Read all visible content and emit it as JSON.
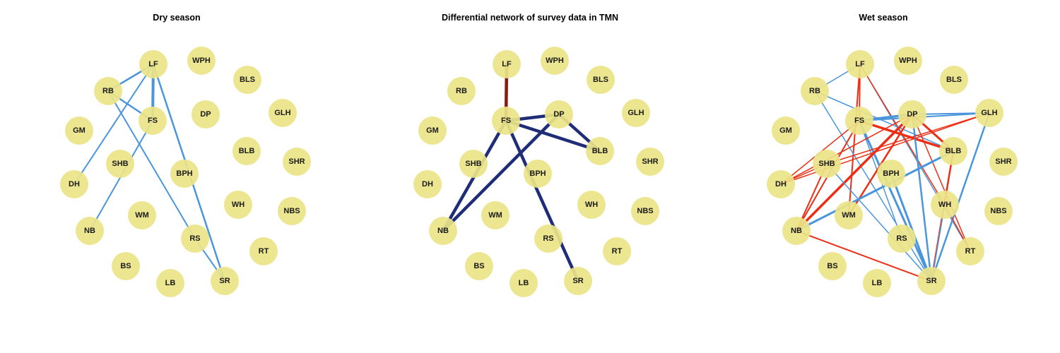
{
  "colors": {
    "node_fill": "#ebe488",
    "dry_edge": "#4a96dc",
    "wet_negative": "#4a96dc",
    "wet_positive": "#ec2f14",
    "diff_main": "#1f2d78",
    "diff_highlight": "#8a1a0c"
  },
  "panels": [
    {
      "id": "dry",
      "title": "Dry season",
      "nodes": [
        "LF",
        "WPH",
        "RB",
        "BLS",
        "FS",
        "DP",
        "GLH",
        "GM",
        "BLB",
        "SHB",
        "SHR",
        "DH",
        "BPH",
        "WH",
        "NBS",
        "NB",
        "WM",
        "RS",
        "RT",
        "BS",
        "LB",
        "SR"
      ],
      "edges": [
        {
          "from": "LF",
          "to": "RB",
          "color": "dry_edge",
          "weight": 2.5
        },
        {
          "from": "LF",
          "to": "FS",
          "color": "dry_edge",
          "weight": 4
        },
        {
          "from": "LF",
          "to": "DH",
          "color": "dry_edge",
          "weight": 2
        },
        {
          "from": "LF",
          "to": "SR",
          "color": "dry_edge",
          "weight": 2.5
        },
        {
          "from": "RB",
          "to": "FS",
          "color": "dry_edge",
          "weight": 2.5
        },
        {
          "from": "RB",
          "to": "RS",
          "color": "dry_edge",
          "weight": 2
        },
        {
          "from": "FS",
          "to": "NB",
          "color": "dry_edge",
          "weight": 2
        },
        {
          "from": "RS",
          "to": "SR",
          "color": "dry_edge",
          "weight": 2
        }
      ]
    },
    {
      "id": "diff",
      "title": "Differential network of survey data in TMN",
      "nodes": [
        "LF",
        "WPH",
        "RB",
        "BLS",
        "FS",
        "DP",
        "GLH",
        "GM",
        "BLB",
        "SHB",
        "SHR",
        "DH",
        "BPH",
        "WH",
        "NBS",
        "NB",
        "WM",
        "RS",
        "RT",
        "BS",
        "LB",
        "SR"
      ],
      "edges": [
        {
          "from": "LF",
          "to": "FS",
          "color": "diff_highlight",
          "weight": 4.5
        },
        {
          "from": "FS",
          "to": "DP",
          "color": "diff_main",
          "weight": 4.5
        },
        {
          "from": "FS",
          "to": "BLB",
          "color": "diff_main",
          "weight": 4.5
        },
        {
          "from": "DP",
          "to": "BLB",
          "color": "diff_main",
          "weight": 4.5
        },
        {
          "from": "FS",
          "to": "NB",
          "color": "diff_main",
          "weight": 4.5
        },
        {
          "from": "DP",
          "to": "NB",
          "color": "diff_main",
          "weight": 4.5
        },
        {
          "from": "FS",
          "to": "SR",
          "color": "diff_main",
          "weight": 4.5
        }
      ]
    },
    {
      "id": "wet",
      "title": "Wet season",
      "nodes": [
        "LF",
        "WPH",
        "RB",
        "BLS",
        "FS",
        "DP",
        "GLH",
        "GM",
        "BLB",
        "SHB",
        "SHR",
        "DH",
        "BPH",
        "WH",
        "NBS",
        "NB",
        "WM",
        "RS",
        "RT",
        "BS",
        "LB",
        "SR"
      ],
      "edges": [
        {
          "from": "LF",
          "to": "RB",
          "color": "wet_negative",
          "weight": 1.5
        },
        {
          "from": "LF",
          "to": "FS",
          "color": "wet_positive",
          "weight": 2
        },
        {
          "from": "LF",
          "to": "WM",
          "color": "wet_positive",
          "weight": 2
        },
        {
          "from": "LF",
          "to": "RT",
          "color": "wet_negative",
          "weight": 1.5
        },
        {
          "from": "LF",
          "to": "WH",
          "color": "wet_positive",
          "weight": 1.5
        },
        {
          "from": "RB",
          "to": "BLB",
          "color": "wet_negative",
          "weight": 1.5
        },
        {
          "from": "RB",
          "to": "SR",
          "color": "wet_negative",
          "weight": 1.5
        },
        {
          "from": "FS",
          "to": "DP",
          "color": "wet_negative",
          "weight": 3.5
        },
        {
          "from": "FS",
          "to": "GLH",
          "color": "wet_negative",
          "weight": 2
        },
        {
          "from": "FS",
          "to": "BLB",
          "color": "wet_positive",
          "weight": 3.5
        },
        {
          "from": "FS",
          "to": "SR",
          "color": "wet_negative",
          "weight": 3
        },
        {
          "from": "FS",
          "to": "RS",
          "color": "wet_negative",
          "weight": 1.5
        },
        {
          "from": "FS",
          "to": "NB",
          "color": "wet_positive",
          "weight": 2
        },
        {
          "from": "FS",
          "to": "DH",
          "color": "wet_positive",
          "weight": 1.5
        },
        {
          "from": "DP",
          "to": "GLH",
          "color": "wet_negative",
          "weight": 2
        },
        {
          "from": "DP",
          "to": "BLB",
          "color": "wet_positive",
          "weight": 3
        },
        {
          "from": "DP",
          "to": "NB",
          "color": "wet_positive",
          "weight": 3.5
        },
        {
          "from": "DP",
          "to": "SR",
          "color": "wet_negative",
          "weight": 2.5
        },
        {
          "from": "DP",
          "to": "RT",
          "color": "wet_positive",
          "weight": 1.5
        },
        {
          "from": "DP",
          "to": "DH",
          "color": "wet_positive",
          "weight": 1.5
        },
        {
          "from": "DP",
          "to": "WM",
          "color": "wet_positive",
          "weight": 2.5
        },
        {
          "from": "GLH",
          "to": "DH",
          "color": "wet_positive",
          "weight": 1.5
        },
        {
          "from": "GLH",
          "to": "SR",
          "color": "wet_negative",
          "weight": 2.5
        },
        {
          "from": "GLH",
          "to": "SHB",
          "color": "wet_positive",
          "weight": 1.5
        },
        {
          "from": "BLB",
          "to": "NB",
          "color": "wet_negative",
          "weight": 3
        },
        {
          "from": "BLB",
          "to": "SR",
          "color": "wet_positive",
          "weight": 2.5
        },
        {
          "from": "SHB",
          "to": "NB",
          "color": "wet_positive",
          "weight": 2
        },
        {
          "from": "SHB",
          "to": "DH",
          "color": "wet_positive",
          "weight": 1.5
        },
        {
          "from": "SHB",
          "to": "SR",
          "color": "wet_negative",
          "weight": 1.5
        },
        {
          "from": "BPH",
          "to": "SR",
          "color": "wet_negative",
          "weight": 3
        },
        {
          "from": "NB",
          "to": "SR",
          "color": "wet_positive",
          "weight": 2
        },
        {
          "from": "WH",
          "to": "SR",
          "color": "wet_negative",
          "weight": 1.5
        },
        {
          "from": "WH",
          "to": "RT",
          "color": "wet_positive",
          "weight": 1.5
        }
      ]
    }
  ]
}
